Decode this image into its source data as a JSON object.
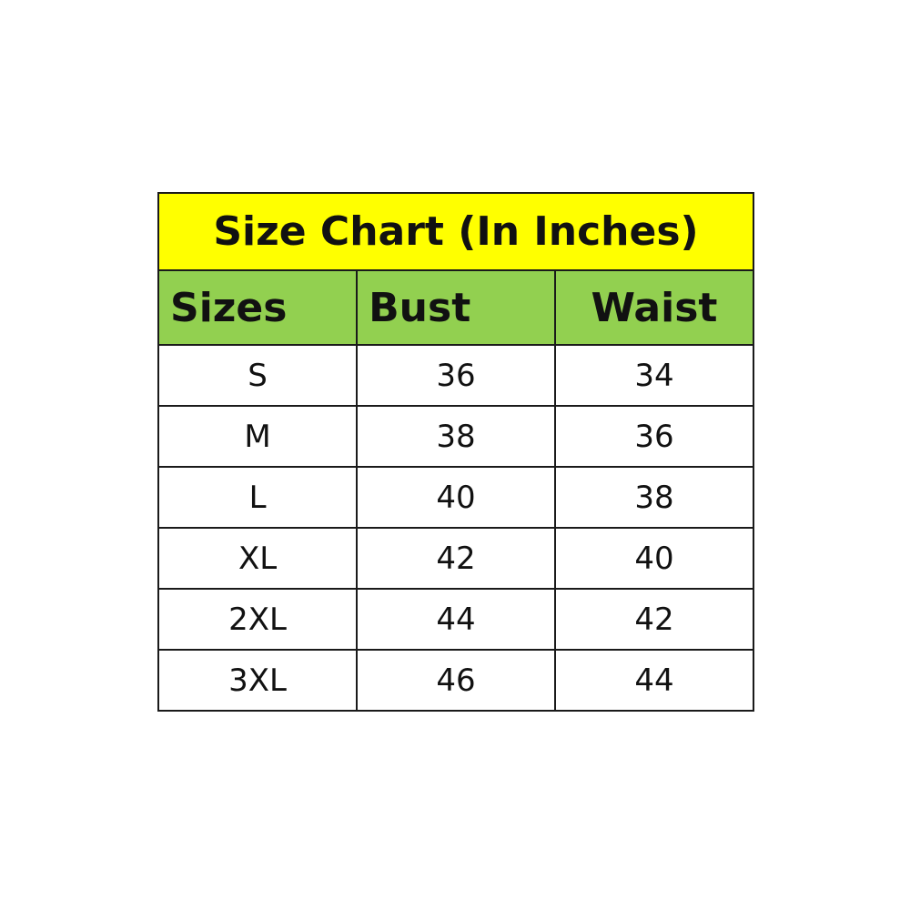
{
  "chart_data": {
    "type": "table",
    "title": "Size Chart (In Inches)",
    "columns": [
      "Sizes",
      "Bust",
      "Waist"
    ],
    "rows": [
      [
        "S",
        "36",
        "34"
      ],
      [
        "M",
        "38",
        "36"
      ],
      [
        "L",
        "40",
        "38"
      ],
      [
        "XL",
        "42",
        "40"
      ],
      [
        "2XL",
        "44",
        "42"
      ],
      [
        "3XL",
        "46",
        "44"
      ]
    ],
    "colors": {
      "title_bg": "#FFFF00",
      "header_bg": "#92D050"
    }
  }
}
